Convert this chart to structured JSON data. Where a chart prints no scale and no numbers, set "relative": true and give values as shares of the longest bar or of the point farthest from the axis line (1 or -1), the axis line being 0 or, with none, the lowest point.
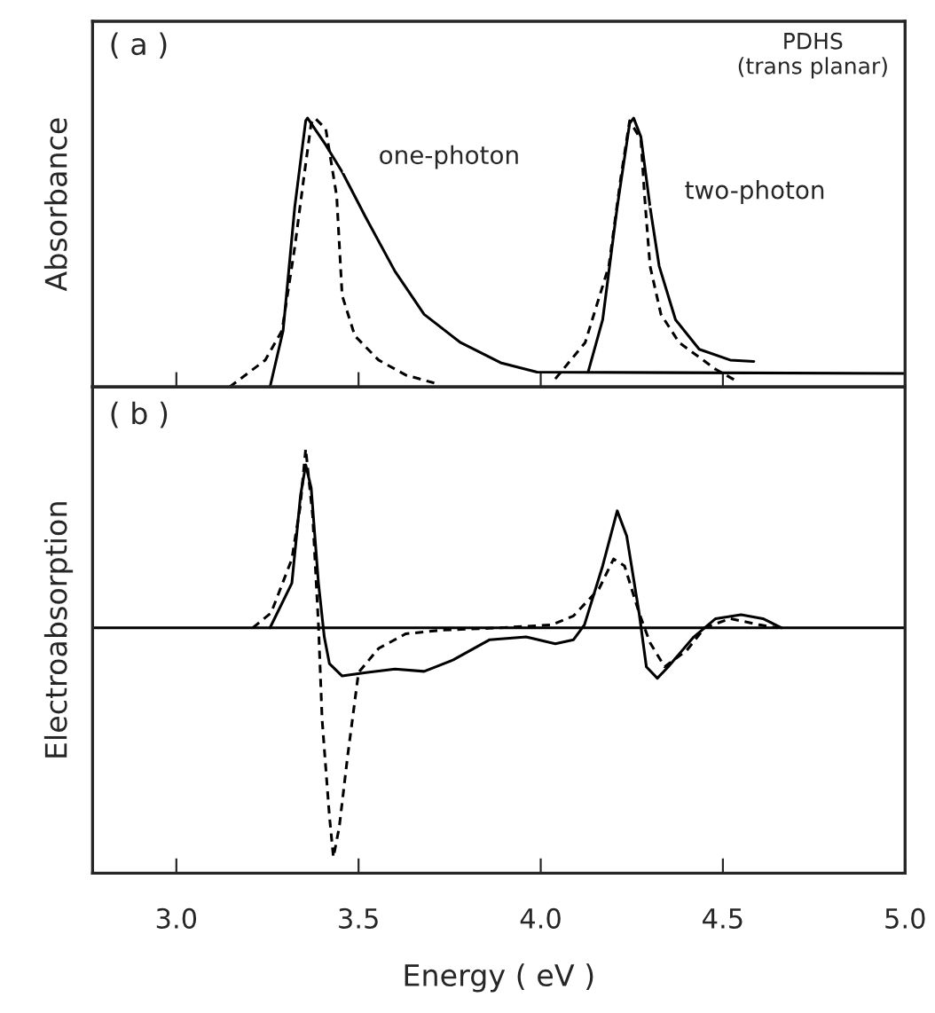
{
  "chart_data": [
    {
      "type": "line",
      "relative": true,
      "ylabel": "Absorbance",
      "xlim": [
        2.77,
        5.0
      ],
      "xticks": [
        {
          "value": 3.0,
          "label": null
        },
        {
          "value": 3.5,
          "label": null
        },
        {
          "value": 4.0,
          "label": null
        },
        {
          "value": 4.5,
          "label": null
        }
      ],
      "tick_labels": false,
      "grid": false,
      "legend": false,
      "annotations": [
        "( a )",
        "PDHS\n(trans planar)",
        {
          "text": "one-photon",
          "x": 3.46,
          "y": 0.8
        },
        {
          "text": "two-photon",
          "x": 4.3,
          "y": 0.67
        }
      ],
      "series": [
        {
          "color": "#000000",
          "line_style": "solid",
          "x": [
            3.257,
            3.293,
            3.325,
            3.355,
            3.36,
            3.41,
            3.455,
            3.52,
            3.6,
            3.68,
            3.78,
            3.89,
            3.99,
            5.0
          ],
          "values": [
            0,
            0.21,
            0.67,
            0.99,
            1.0,
            0.9,
            0.8,
            0.63,
            0.43,
            0.27,
            0.165,
            0.09,
            0.055,
            0.05
          ]
        },
        {
          "color": "#000000",
          "line_style": "dashed",
          "x": [
            3.146,
            3.244,
            3.29,
            3.325,
            3.35,
            3.37,
            3.38,
            3.41,
            3.44,
            3.455,
            3.49,
            3.555,
            3.63,
            3.72
          ],
          "values": [
            0,
            0.1,
            0.21,
            0.52,
            0.78,
            0.98,
            1.0,
            0.96,
            0.71,
            0.34,
            0.19,
            0.1,
            0.044,
            0.01
          ]
        },
        {
          "color": "#000000",
          "line_style": "solid",
          "x": [
            4.13,
            4.17,
            4.21,
            4.244,
            4.255,
            4.275,
            4.3,
            4.325,
            4.37,
            4.435,
            4.52,
            4.585
          ],
          "values": [
            0.055,
            0.25,
            0.67,
            0.98,
            1.0,
            0.93,
            0.67,
            0.45,
            0.25,
            0.14,
            0.1,
            0.095
          ]
        },
        {
          "color": "#000000",
          "line_style": "dashed",
          "x": [
            4.04,
            4.122,
            4.187,
            4.22,
            4.244,
            4.275,
            4.285,
            4.3,
            4.33,
            4.38,
            4.48,
            4.54
          ],
          "values": [
            0.03,
            0.165,
            0.45,
            0.78,
            0.99,
            0.92,
            0.71,
            0.45,
            0.27,
            0.165,
            0.066,
            0.02
          ]
        }
      ]
    },
    {
      "type": "line",
      "relative": true,
      "ylabel": "Electroabsorption",
      "xlabel": "Energy ( eV )",
      "xlim": [
        2.77,
        5.0
      ],
      "xticks": [
        {
          "value": 3.0,
          "label": "3.0"
        },
        {
          "value": 3.5,
          "label": "3.5"
        },
        {
          "value": 4.0,
          "label": "4.0"
        },
        {
          "value": 4.5,
          "label": "4.5"
        },
        {
          "value": 5.0,
          "label": "5.0"
        }
      ],
      "tick_labels": "x",
      "grid": false,
      "legend": false,
      "annotations": [
        "( b )"
      ],
      "ref_lines": [
        {
          "axis": "y",
          "value": 0,
          "color": "#000000",
          "line_style": "solid"
        }
      ],
      "series": [
        {
          "color": "#000000",
          "line_style": "solid",
          "x": [
            3.257,
            3.317,
            3.341,
            3.355,
            3.37,
            3.39,
            3.406,
            3.42,
            3.455,
            3.52,
            3.6,
            3.68,
            3.76,
            3.86,
            3.96,
            4.04,
            4.09,
            4.12,
            4.17,
            4.21,
            4.236,
            4.27,
            4.29,
            4.32,
            4.35,
            4.42,
            4.48,
            4.55,
            4.61,
            4.66
          ],
          "values": [
            0,
            0.195,
            0.58,
            0.71,
            0.61,
            0.195,
            -0.04,
            -0.156,
            -0.21,
            -0.195,
            -0.18,
            -0.19,
            -0.14,
            -0.052,
            -0.04,
            -0.07,
            -0.052,
            0.013,
            0.27,
            0.51,
            0.4,
            0.065,
            -0.17,
            -0.22,
            -0.17,
            -0.04,
            0.04,
            0.057,
            0.04,
            0
          ]
        },
        {
          "color": "#000000",
          "line_style": "dashed",
          "x": [
            3.21,
            3.26,
            3.317,
            3.34,
            3.355,
            3.374,
            3.39,
            3.4,
            3.42,
            3.431,
            3.447,
            3.47,
            3.5,
            3.555,
            3.63,
            3.73,
            3.89,
            4.03,
            4.09,
            4.16,
            4.2,
            4.23,
            4.27,
            4.3,
            4.34,
            4.4,
            4.45,
            4.52,
            4.6,
            4.65
          ],
          "values": [
            0,
            0.065,
            0.3,
            0.53,
            0.78,
            0.49,
            0.013,
            -0.4,
            -0.82,
            -1.0,
            -0.87,
            -0.56,
            -0.195,
            -0.09,
            -0.026,
            -0.01,
            0,
            0.013,
            0.052,
            0.17,
            0.3,
            0.27,
            0.065,
            -0.065,
            -0.17,
            -0.1,
            0,
            0.04,
            0.013,
            0
          ]
        }
      ]
    }
  ]
}
